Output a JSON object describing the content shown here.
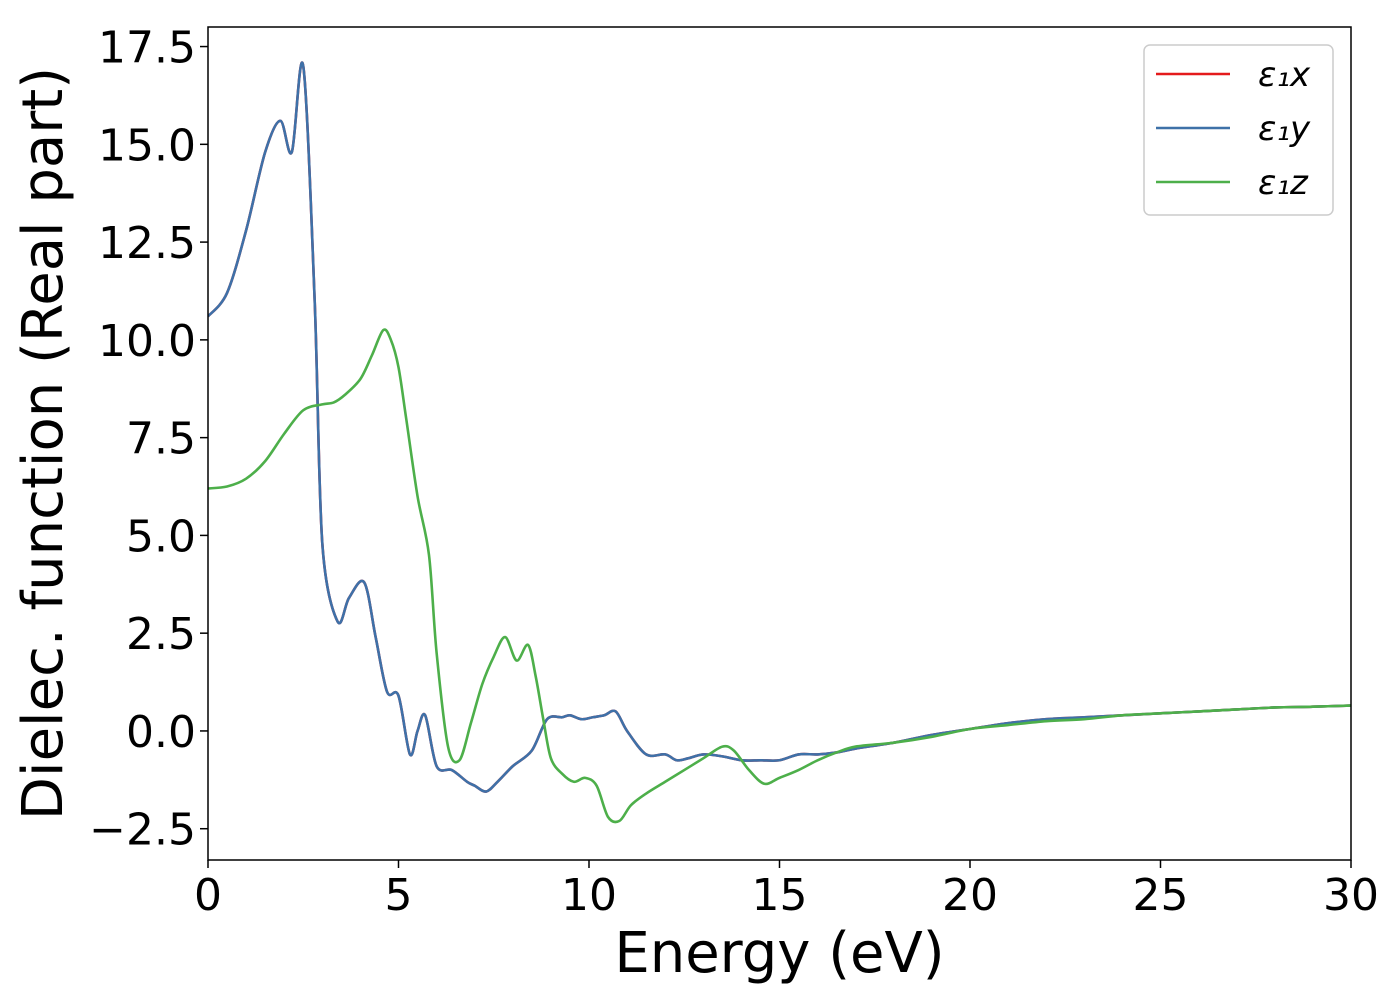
{
  "chart_data": {
    "type": "line",
    "title": "",
    "xlabel": "Energy (eV)",
    "ylabel": "Dielec. function (Real part)",
    "xlim": [
      0,
      30
    ],
    "ylim": [
      -3.3,
      18.0
    ],
    "xticks": [
      0,
      5,
      10,
      15,
      20,
      25,
      30
    ],
    "xtick_labels": [
      "0",
      "5",
      "10",
      "15",
      "20",
      "25",
      "30"
    ],
    "yticks": [
      -2.5,
      0.0,
      2.5,
      5.0,
      7.5,
      10.0,
      12.5,
      15.0,
      17.5
    ],
    "ytick_labels": [
      "−2.5",
      "0.0",
      "2.5",
      "5.0",
      "7.5",
      "10.0",
      "12.5",
      "15.0",
      "17.5"
    ],
    "grid": false,
    "legend_position": "top-right",
    "series": [
      {
        "name": "ε₁x",
        "color": "#e41a1c",
        "x": [
          0,
          0.5,
          1.0,
          1.5,
          1.9,
          2.2,
          2.5,
          2.8,
          3.0,
          3.4,
          3.7,
          4.1,
          4.4,
          4.7,
          5.0,
          5.3,
          5.5,
          5.7,
          6.0,
          6.4,
          6.8,
          7.0,
          7.3,
          7.6,
          8.0,
          8.5,
          8.9,
          9.3,
          9.5,
          9.8,
          10.1,
          10.4,
          10.7,
          11.0,
          11.5,
          12.0,
          12.3,
          12.6,
          13.0,
          13.5,
          14.0,
          14.5,
          15.0,
          15.5,
          16.0,
          16.5,
          17.0,
          18.0,
          19.0,
          20.0,
          21.0,
          22.0,
          23.0,
          24.0,
          25.0,
          26.0,
          27.0,
          28.0,
          29.0,
          30.0
        ],
        "y": [
          10.6,
          11.2,
          12.8,
          14.8,
          15.6,
          14.8,
          17.0,
          11.0,
          4.8,
          2.8,
          3.4,
          3.8,
          2.4,
          1.0,
          0.9,
          -0.6,
          0.0,
          0.4,
          -0.9,
          -1.0,
          -1.3,
          -1.4,
          -1.55,
          -1.3,
          -0.9,
          -0.5,
          0.3,
          0.35,
          0.4,
          0.3,
          0.35,
          0.4,
          0.5,
          0.0,
          -0.6,
          -0.6,
          -0.75,
          -0.7,
          -0.6,
          -0.65,
          -0.75,
          -0.75,
          -0.75,
          -0.6,
          -0.6,
          -0.55,
          -0.45,
          -0.3,
          -0.1,
          0.05,
          0.2,
          0.3,
          0.35,
          0.4,
          0.45,
          0.5,
          0.55,
          0.6,
          0.62,
          0.65
        ]
      },
      {
        "name": "ε₁y",
        "color": "#3e71a8",
        "x": [
          0,
          0.5,
          1.0,
          1.5,
          1.9,
          2.2,
          2.5,
          2.8,
          3.0,
          3.4,
          3.7,
          4.1,
          4.4,
          4.7,
          5.0,
          5.3,
          5.5,
          5.7,
          6.0,
          6.4,
          6.8,
          7.0,
          7.3,
          7.6,
          8.0,
          8.5,
          8.9,
          9.3,
          9.5,
          9.8,
          10.1,
          10.4,
          10.7,
          11.0,
          11.5,
          12.0,
          12.3,
          12.6,
          13.0,
          13.5,
          14.0,
          14.5,
          15.0,
          15.5,
          16.0,
          16.5,
          17.0,
          18.0,
          19.0,
          20.0,
          21.0,
          22.0,
          23.0,
          24.0,
          25.0,
          26.0,
          27.0,
          28.0,
          29.0,
          30.0
        ],
        "y": [
          10.6,
          11.2,
          12.8,
          14.8,
          15.6,
          14.8,
          17.0,
          11.0,
          4.8,
          2.8,
          3.4,
          3.8,
          2.4,
          1.0,
          0.9,
          -0.6,
          0.0,
          0.4,
          -0.9,
          -1.0,
          -1.3,
          -1.4,
          -1.55,
          -1.3,
          -0.9,
          -0.5,
          0.3,
          0.35,
          0.4,
          0.3,
          0.35,
          0.4,
          0.5,
          0.0,
          -0.6,
          -0.6,
          -0.75,
          -0.7,
          -0.6,
          -0.65,
          -0.75,
          -0.75,
          -0.75,
          -0.6,
          -0.6,
          -0.55,
          -0.45,
          -0.3,
          -0.1,
          0.05,
          0.2,
          0.3,
          0.35,
          0.4,
          0.45,
          0.5,
          0.55,
          0.6,
          0.62,
          0.65
        ]
      },
      {
        "name": "ε₁z",
        "color": "#4daf4a",
        "x": [
          0,
          0.5,
          1.0,
          1.5,
          2.0,
          2.5,
          3.0,
          3.3,
          3.6,
          4.0,
          4.3,
          4.6,
          4.8,
          5.0,
          5.2,
          5.5,
          5.8,
          6.0,
          6.3,
          6.6,
          6.9,
          7.2,
          7.5,
          7.8,
          8.1,
          8.4,
          8.6,
          8.8,
          9.0,
          9.3,
          9.6,
          9.9,
          10.2,
          10.5,
          10.8,
          11.1,
          11.5,
          12.0,
          12.5,
          13.0,
          13.5,
          13.8,
          14.2,
          14.6,
          15.0,
          15.5,
          16.0,
          16.5,
          17.0,
          18.0,
          19.0,
          20.0,
          21.0,
          22.0,
          23.0,
          24.0,
          25.0,
          26.0,
          27.0,
          28.0,
          29.0,
          30.0
        ],
        "y": [
          6.2,
          6.25,
          6.45,
          6.9,
          7.6,
          8.2,
          8.35,
          8.4,
          8.6,
          9.0,
          9.6,
          10.25,
          10.0,
          9.3,
          8.0,
          6.0,
          4.5,
          2.0,
          -0.4,
          -0.75,
          0.2,
          1.2,
          1.9,
          2.4,
          1.8,
          2.2,
          1.4,
          0.3,
          -0.7,
          -1.1,
          -1.3,
          -1.2,
          -1.4,
          -2.2,
          -2.3,
          -1.9,
          -1.6,
          -1.3,
          -1.0,
          -0.7,
          -0.4,
          -0.5,
          -1.0,
          -1.35,
          -1.2,
          -1.0,
          -0.75,
          -0.55,
          -0.4,
          -0.3,
          -0.15,
          0.05,
          0.15,
          0.25,
          0.3,
          0.4,
          0.45,
          0.5,
          0.55,
          0.6,
          0.62,
          0.65
        ]
      }
    ]
  }
}
